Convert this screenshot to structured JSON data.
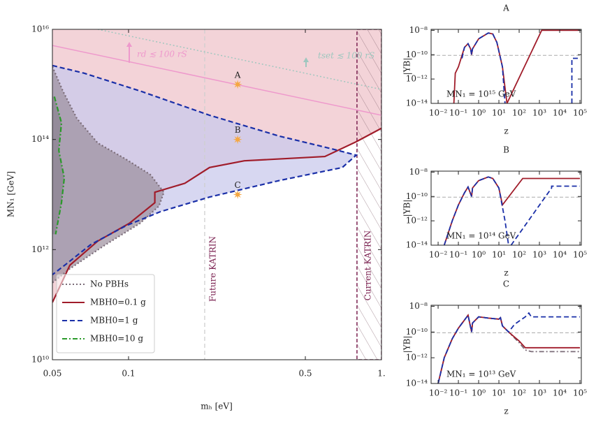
{
  "chart_data": [
    {
      "type": "line",
      "xlabel": "mₕ [eV]",
      "ylabel": "MN₁ [GeV]",
      "xscale": "log",
      "yscale": "log",
      "xlim": [
        0.05,
        1
      ],
      "ylim": [
        10000000000.0,
        1e+16
      ],
      "xticks": [
        0.05,
        0.1,
        0.5,
        {
          "value": 1,
          "label": "1."
        }
      ],
      "yticks": [
        {
          "value": 10000000000.0,
          "label": "10¹⁰"
        },
        {
          "value": 1000000000000.0,
          "label": "10¹²"
        },
        {
          "value": 100000000000000.0,
          "label": "10¹⁴"
        },
        {
          "value": 1e+16,
          "label": "10¹⁶"
        }
      ],
      "legend": "lower left",
      "series": [
        {
          "name": "No PBHs",
          "color": "#7b6c78",
          "style": "dotted",
          "fill": "#9b8f9c",
          "x": [
            0.05,
            0.055,
            0.0625,
            0.0756,
            0.0975,
            0.122,
            0.138,
            0.132,
            0.111,
            0.0805,
            0.0586,
            0.05
          ],
          "values": [
            2100000000000000.0,
            760000000000000.0,
            240000000000000.0,
            86000000000000.0,
            44000000000000.0,
            23000000000000.0,
            11000000000000.0,
            6200000000000.0,
            3000000000000.0,
            1200000000000.0,
            450000000000.0,
            250000000000.0
          ]
        },
        {
          "name": "MBH0=0.1 g",
          "color": "#a01c2a",
          "style": "solid",
          "fill": "#f3d3d8",
          "x": [
            0.05,
            0.0586,
            0.0756,
            0.1007,
            0.127,
            0.127,
            0.167,
            0.209,
            0.287,
            0.597,
            0.795,
            1
          ],
          "values": [
            110000000000.0,
            520000000000.0,
            1430000000000.0,
            3000000000000.0,
            7100000000000.0,
            11000000000000.0,
            16000000000000.0,
            31000000000000.0,
            41000000000000.0,
            49000000000000.0,
            91000000000000.0,
            160000000000000.0
          ]
        },
        {
          "name": "MBH0=1 g",
          "color": "#1a2fa8",
          "style": "dashed",
          "fill": "#c9c9ec",
          "x": [
            0.05,
            0.0666,
            0.111,
            0.209,
            0.395,
            0.617,
            0.795,
            0.7,
            0.395,
            0.209,
            0.134,
            0.0975,
            0.071,
            0.0568,
            0.05
          ],
          "values": [
            2200000000000000.0,
            1600000000000000.0,
            760000000000000.0,
            275000000000000.0,
            115000000000000.0,
            70000000000000.0,
            52000000000000.0,
            31000000000000.0,
            18000000000000.0,
            9000000000000.0,
            4900000000000.0,
            2700000000000.0,
            1240000000000.0,
            550000000000.0,
            350000000000.0
          ]
        },
        {
          "name": "MBH0=10 g",
          "color": "#2a9a2a",
          "style": "dashdot",
          "fill": "#8a8290",
          "x": [
            0.0509,
            0.0543,
            0.053,
            0.0557,
            0.0543,
            0.0515
          ],
          "values": [
            600000000000000.0,
            200000000000000.0,
            63000000000000.0,
            20000000000000.0,
            7100000000000.0,
            1900000000000.0
          ]
        }
      ],
      "bound_lines": [
        {
          "label": "rd ≲ 100 rS",
          "color": "#ee99cc",
          "style": "solid",
          "x": [
            0.05,
            1
          ],
          "values": [
            5100000000000000.0,
            275000000000000.0
          ]
        },
        {
          "label": "tset ≲ 100 rS",
          "color": "#9fc7bf",
          "style": "dotted",
          "x": [
            0.0756,
            1
          ],
          "values": [
            1e+16,
            810000000000000.0
          ]
        }
      ],
      "vlines": [
        {
          "label": "Future KATRIN",
          "x": 0.2,
          "color": "#cfcfcf"
        },
        {
          "label": "Current KATRIN",
          "x": 0.8,
          "color": "#7a1f4f"
        }
      ],
      "benchmarks": [
        {
          "label": "A",
          "x": 0.27,
          "y": 1000000000000000.0
        },
        {
          "label": "B",
          "x": 0.27,
          "y": 100000000000000.0
        },
        {
          "label": "C",
          "x": 0.27,
          "y": 10000000000000.0
        }
      ],
      "marker_color": "#f5a742"
    },
    {
      "type": "line",
      "title": "A",
      "xlabel": "z",
      "ylabel": "|YB|",
      "annotation": "MN₁ = 10¹⁵ GeV",
      "xlim": [
        0.0045,
        117000
      ],
      "ylim": [
        1e-14,
        1.2e-08
      ],
      "xticks": [
        {
          "value": 0.01,
          "label": "10⁻²"
        },
        {
          "value": 0.1,
          "label": "10⁻¹"
        },
        {
          "value": 1,
          "label": "10⁰"
        },
        {
          "value": 10,
          "label": "10¹"
        },
        {
          "value": 100,
          "label": "10²"
        },
        {
          "value": 1000,
          "label": "10³"
        },
        {
          "value": 10000,
          "label": "10⁴"
        },
        {
          "value": 100000,
          "label": "10⁵"
        }
      ],
      "yticks": [
        {
          "value": 1e-14,
          "label": "10⁻¹⁴"
        },
        {
          "value": 1e-12,
          "label": "10⁻¹²"
        },
        {
          "value": 1e-10,
          "label": "10⁻¹⁰"
        },
        {
          "value": 1e-08,
          "label": "10⁻⁸"
        }
      ],
      "hline": 8.7e-11,
      "series": [
        {
          "color": "#a01c2a",
          "style": "solid",
          "x": [
            0.06,
            0.07,
            0.1,
            0.2,
            0.3,
            0.4,
            0.45,
            0.5,
            1,
            3,
            5,
            8,
            15,
            25,
            1300,
            100000
          ],
          "values": [
            1e-14,
            3e-12,
            1e-11,
            4e-10,
            8e-10,
            3e-10,
            1e-10,
            3e-10,
            2e-09,
            6e-09,
            5e-09,
            1e-09,
            1e-11,
            1e-14,
            1e-08,
            1e-08
          ]
        },
        {
          "color": "#1a2fa8",
          "style": "dashed",
          "x": [
            0.15,
            0.2,
            0.3,
            0.4,
            0.45,
            0.5,
            1,
            3,
            5,
            8,
            15,
            20,
            null,
            40000,
            40000,
            100000
          ],
          "values": [
            5e-11,
            4e-10,
            8e-10,
            3e-10,
            1e-10,
            3e-10,
            2e-09,
            6e-09,
            5e-09,
            1e-09,
            1e-11,
            1e-14,
            null,
            1e-14,
            5e-11,
            5e-11
          ]
        }
      ]
    },
    {
      "type": "line",
      "title": "B",
      "xlabel": "z",
      "ylabel": "|YB|",
      "annotation": "MN₁ = 10¹⁴ GeV",
      "xlim": [
        0.0045,
        117000
      ],
      "ylim": [
        1e-14,
        1.2e-08
      ],
      "xticks": [
        {
          "value": 0.01,
          "label": "10⁻²"
        },
        {
          "value": 0.1,
          "label": "10⁻¹"
        },
        {
          "value": 1,
          "label": "10⁰"
        },
        {
          "value": 10,
          "label": "10¹"
        },
        {
          "value": 100,
          "label": "10²"
        },
        {
          "value": 1000,
          "label": "10³"
        },
        {
          "value": 10000,
          "label": "10⁴"
        },
        {
          "value": 100000,
          "label": "10⁵"
        }
      ],
      "yticks": [
        {
          "value": 1e-14,
          "label": "10⁻¹⁴"
        },
        {
          "value": 1e-12,
          "label": "10⁻¹²"
        },
        {
          "value": 1e-10,
          "label": "10⁻¹⁰"
        },
        {
          "value": 1e-08,
          "label": "10⁻⁸"
        }
      ],
      "hline": 8.7e-11,
      "series": [
        {
          "color": "#a01c2a",
          "style": "solid",
          "x": [
            0.02,
            0.05,
            0.1,
            0.2,
            0.3,
            0.45,
            0.5,
            1,
            3,
            5,
            10,
            15,
            150,
            100000
          ],
          "values": [
            1e-14,
            1e-12,
            2e-11,
            2e-10,
            6e-10,
            1e-10,
            5e-10,
            2e-09,
            4e-09,
            3e-09,
            5e-10,
            2e-11,
            3e-09,
            3e-09
          ]
        },
        {
          "color": "#1a2fa8",
          "style": "dashed",
          "x": [
            0.02,
            0.05,
            0.1,
            0.2,
            0.3,
            0.45,
            0.5,
            1,
            3,
            5,
            10,
            20,
            30,
            null,
            40,
            4000,
            4000,
            100000
          ],
          "values": [
            1e-14,
            1e-12,
            2e-11,
            2e-10,
            6e-10,
            1e-10,
            5e-10,
            2e-09,
            4e-09,
            3e-09,
            5e-10,
            1e-12,
            1e-14,
            null,
            1e-14,
            5e-10,
            7e-10,
            7e-10
          ]
        }
      ]
    },
    {
      "type": "line",
      "title": "C",
      "xlabel": "z",
      "ylabel": "|YB|",
      "annotation": "MN₁ = 10¹³ GeV",
      "xlim": [
        0.0045,
        117000
      ],
      "ylim": [
        1e-14,
        1.2e-08
      ],
      "xticks": [
        {
          "value": 0.01,
          "label": "10⁻²"
        },
        {
          "value": 0.1,
          "label": "10⁻¹"
        },
        {
          "value": 1,
          "label": "10⁰"
        },
        {
          "value": 10,
          "label": "10¹"
        },
        {
          "value": 100,
          "label": "10²"
        },
        {
          "value": 1000,
          "label": "10³"
        },
        {
          "value": 10000,
          "label": "10⁴"
        },
        {
          "value": 100000,
          "label": "10⁵"
        }
      ],
      "yticks": [
        {
          "value": 1e-14,
          "label": "10⁻¹⁴"
        },
        {
          "value": 1e-12,
          "label": "10⁻¹²"
        },
        {
          "value": 1e-10,
          "label": "10⁻¹⁰"
        },
        {
          "value": 1e-08,
          "label": "10⁻⁸"
        }
      ],
      "hline": 8.7e-11,
      "series": [
        {
          "color": "#7b6c78",
          "style": "dashdot",
          "x": [
            0.01,
            0.02,
            0.05,
            0.1,
            0.3,
            0.45,
            0.5,
            1,
            3,
            10,
            12,
            15,
            30,
            100,
            200,
            400,
            100000
          ],
          "values": [
            1e-14,
            1e-12,
            3e-11,
            2e-10,
            2e-09,
            1e-10,
            5e-10,
            1.5e-09,
            1.2e-09,
            1e-09,
            1.3e-09,
            3e-10,
            1e-10,
            1.5e-11,
            4e-12,
            3e-12,
            3e-12
          ]
        },
        {
          "color": "#a01c2a",
          "style": "solid",
          "x": [
            0.01,
            0.02,
            0.05,
            0.1,
            0.3,
            0.45,
            0.5,
            1,
            3,
            10,
            12,
            15,
            30,
            100,
            200,
            100000
          ],
          "values": [
            1e-14,
            1e-12,
            3e-11,
            2e-10,
            2e-09,
            1e-10,
            5e-10,
            1.5e-09,
            1.2e-09,
            1e-09,
            1.3e-09,
            3e-10,
            1e-10,
            2e-11,
            6e-12,
            6e-12
          ]
        },
        {
          "color": "#1a2fa8",
          "style": "dashed",
          "x": [
            0.01,
            0.02,
            0.05,
            0.1,
            0.3,
            0.45,
            0.5,
            1,
            3,
            10,
            12,
            15,
            30,
            60,
            200,
            300,
            400,
            100000
          ],
          "values": [
            1e-14,
            1e-12,
            3e-11,
            2e-10,
            2e-09,
            1e-10,
            5e-10,
            1.5e-09,
            1.2e-09,
            1e-09,
            1.3e-09,
            3e-10,
            1e-10,
            4e-10,
            1.5e-09,
            3e-09,
            1.5e-09,
            1.5e-09
          ]
        }
      ]
    }
  ]
}
